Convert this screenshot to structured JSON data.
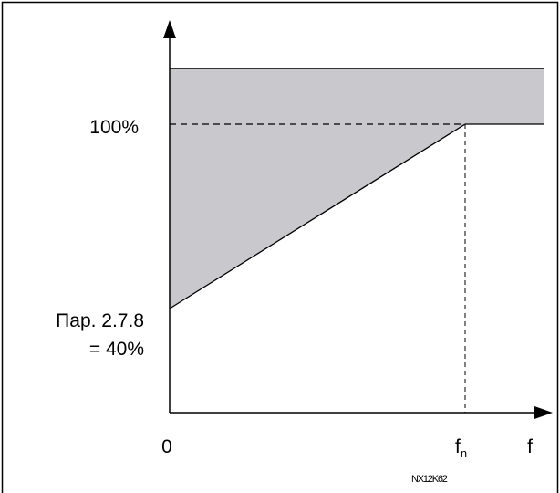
{
  "labels": {
    "y_100": "100%",
    "y_par_line1": "Пар. 2.7.8",
    "y_par_line2": "= 40%",
    "x_zero": "0",
    "x_fn_main": "f",
    "x_fn_sub": "n",
    "x_axis": "f",
    "code": "NX12K62"
  },
  "colors": {
    "region_fill": "#c9c9cd",
    "line": "#000000",
    "background": "#ffffff"
  }
}
